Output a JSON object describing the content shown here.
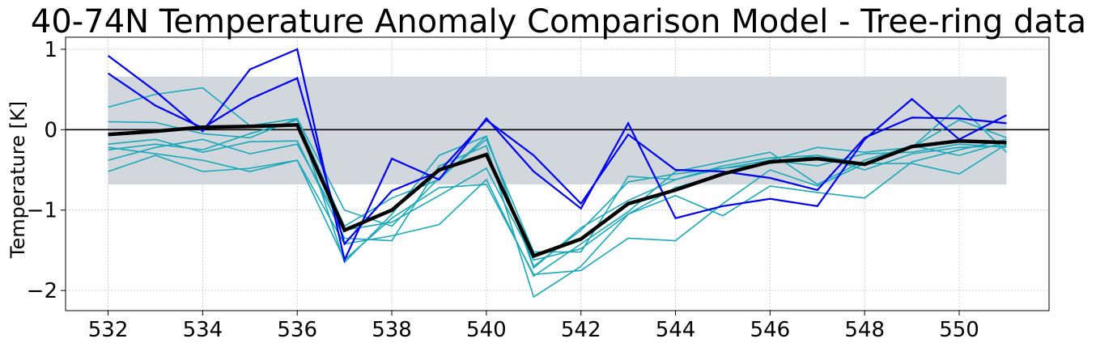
{
  "chart_data": {
    "type": "line",
    "title": "40-74N Temperature Anomaly Comparison Model - Tree-ring data",
    "xlabel": "",
    "ylabel": "Temperature [K]",
    "xlim": [
      531.1,
      551.9
    ],
    "ylim": [
      -2.25,
      1.15
    ],
    "xticks": [
      532,
      534,
      536,
      538,
      540,
      542,
      544,
      546,
      548,
      550
    ],
    "yticks": [
      -2,
      -1,
      0,
      1
    ],
    "grid": true,
    "legend": "none",
    "band": {
      "x": [
        532,
        551
      ],
      "y": [
        -0.68,
        0.66
      ],
      "color": "#d1d7dc"
    },
    "zero_line": {
      "y": 0,
      "color": "#000000"
    },
    "x": [
      532,
      533,
      534,
      535,
      536,
      537,
      538,
      539,
      540,
      541,
      542,
      543,
      544,
      545,
      546,
      547,
      548,
      549,
      550,
      551
    ],
    "series": [
      {
        "color": "#1ba8b8",
        "width": 1.6,
        "values": [
          0.28,
          0.44,
          0.52,
          0.05,
          0.14,
          -1.0,
          -1.2,
          -0.6,
          -0.12,
          -1.52,
          -1.52,
          -0.58,
          -0.62,
          -0.48,
          -0.42,
          -0.32,
          -0.42,
          -0.22,
          0.12,
          -0.1
        ]
      },
      {
        "color": "#1ba8b8",
        "width": 1.6,
        "values": [
          0.1,
          0.09,
          -0.05,
          -0.1,
          0.14,
          -1.65,
          -1.05,
          -0.32,
          -0.08,
          -1.7,
          -1.25,
          -0.65,
          -0.55,
          -0.48,
          -0.38,
          -0.22,
          -0.28,
          -0.22,
          0.3,
          -0.28
        ]
      },
      {
        "color": "#1ba8b8",
        "width": 1.6,
        "values": [
          -0.18,
          -0.12,
          -0.28,
          -0.15,
          -0.14,
          -1.35,
          -1.38,
          -0.45,
          -0.2,
          -2.08,
          -1.7,
          -1.05,
          -0.82,
          -1.07,
          -0.7,
          -0.78,
          -0.85,
          -0.4,
          -0.25,
          -0.12
        ]
      },
      {
        "color": "#1ba8b8",
        "width": 1.6,
        "values": [
          -0.22,
          -0.3,
          -0.38,
          -0.52,
          -0.38,
          -1.62,
          -1.1,
          -0.72,
          -0.68,
          -1.8,
          -1.75,
          -1.35,
          -1.38,
          -0.92,
          -0.5,
          -0.7,
          -0.42,
          -0.42,
          -0.55,
          -0.18
        ]
      },
      {
        "color": "#1ba8b8",
        "width": 1.6,
        "values": [
          -0.25,
          -0.18,
          -0.25,
          -0.05,
          0.12,
          -1.2,
          -0.85,
          -0.62,
          -0.08,
          -1.72,
          -1.22,
          -0.88,
          -0.62,
          -0.45,
          -0.35,
          -0.32,
          -0.5,
          -0.3,
          -0.22,
          -0.2
        ]
      },
      {
        "color": "#1ba8b8",
        "width": 1.6,
        "values": [
          -0.52,
          -0.32,
          -0.52,
          -0.48,
          -0.38,
          -1.42,
          -1.32,
          -1.18,
          -0.62,
          -1.82,
          -1.42,
          -1.02,
          -0.52,
          -0.4,
          -0.28,
          -0.68,
          -0.38,
          -0.2,
          -0.32,
          -0.15
        ]
      },
      {
        "color": "#1ba8b8",
        "width": 1.6,
        "values": [
          -0.38,
          -0.22,
          -0.12,
          -0.3,
          -0.18,
          -1.25,
          -1.15,
          -0.82,
          -0.48,
          -1.62,
          -1.48,
          -1.05,
          -0.72,
          -0.55,
          -0.38,
          -0.45,
          -0.3,
          -0.28,
          -0.18,
          -0.22
        ]
      },
      {
        "color": "#0000ee",
        "width": 2.2,
        "values": [
          0.92,
          0.48,
          -0.02,
          0.75,
          1.0,
          -1.62,
          -0.36,
          -0.62,
          0.14,
          -0.52,
          -0.98,
          0.08,
          -1.1,
          -0.95,
          -0.86,
          -0.95,
          -0.12,
          0.38,
          -0.12,
          0.18
        ]
      },
      {
        "color": "#0000ee",
        "width": 2.2,
        "values": [
          0.7,
          0.3,
          0.02,
          0.38,
          0.64,
          -1.42,
          -0.76,
          -0.52,
          0.12,
          -0.32,
          -0.92,
          -0.06,
          -0.5,
          -0.52,
          -0.6,
          -0.75,
          -0.1,
          0.15,
          0.14,
          0.08
        ]
      },
      {
        "color": "#000000",
        "width": 4.5,
        "values": [
          -0.06,
          -0.02,
          0.03,
          0.04,
          0.06,
          -1.25,
          -1.0,
          -0.5,
          -0.31,
          -1.57,
          -1.36,
          -0.92,
          -0.75,
          -0.55,
          -0.4,
          -0.36,
          -0.43,
          -0.21,
          -0.14,
          -0.16
        ]
      }
    ]
  }
}
